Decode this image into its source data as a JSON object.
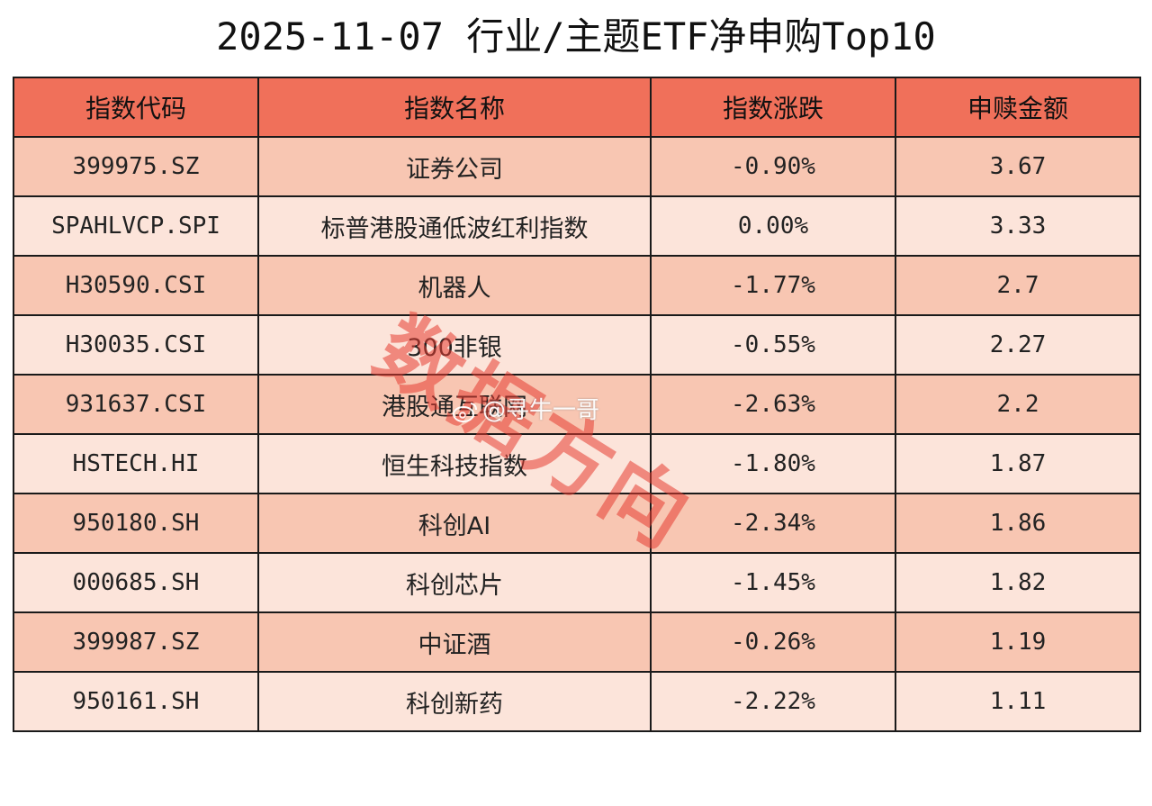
{
  "title": "2025-11-07 行业/主题ETF净申购Top10",
  "table": {
    "headers": [
      "指数代码",
      "指数名称",
      "指数涨跌",
      "申赎金额"
    ],
    "rows": [
      {
        "code": "399975.SZ",
        "name": "证券公司",
        "change": "-0.90%",
        "amount": "3.67"
      },
      {
        "code": "SPAHLVCP.SPI",
        "name": "标普港股通低波红利指数",
        "change": "0.00%",
        "amount": "3.33"
      },
      {
        "code": "H30590.CSI",
        "name": "机器人",
        "change": "-1.77%",
        "amount": "2.7"
      },
      {
        "code": "H30035.CSI",
        "name": "300非银",
        "change": "-0.55%",
        "amount": "2.27"
      },
      {
        "code": "931637.CSI",
        "name": "港股通互联网",
        "change": "-2.63%",
        "amount": "2.2"
      },
      {
        "code": "HSTECH.HI",
        "name": "恒生科技指数",
        "change": "-1.80%",
        "amount": "1.87"
      },
      {
        "code": "950180.SH",
        "name": "科创AI",
        "change": "-2.34%",
        "amount": "1.86"
      },
      {
        "code": "000685.SH",
        "name": "科创芯片",
        "change": "-1.45%",
        "amount": "1.82"
      },
      {
        "code": "399987.SZ",
        "name": "中证酒",
        "change": "-0.26%",
        "amount": "1.19"
      },
      {
        "code": "950161.SH",
        "name": "科创新药",
        "change": "-2.22%",
        "amount": "1.11"
      }
    ]
  },
  "watermark": {
    "stamp_text": "数据方向",
    "weibo_handle": "@寻牛一哥"
  },
  "colors": {
    "header_bg": "#f0705a",
    "row_odd_bg": "#f8c6b2",
    "row_even_bg": "#fce4da",
    "watermark": "#e63c32"
  }
}
